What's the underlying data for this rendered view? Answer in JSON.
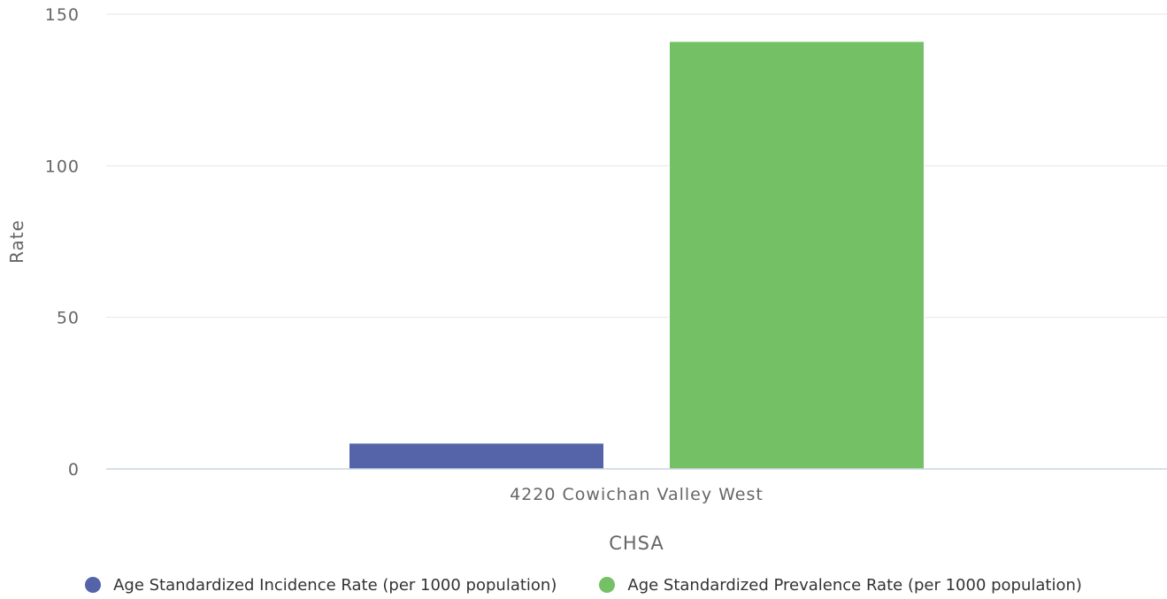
{
  "chart_data": {
    "type": "bar",
    "categories": [
      "4220 Cowichan Valley West"
    ],
    "series": [
      {
        "name": "Age Standardized Incidence Rate (per 1000 population)",
        "values": [
          8.5
        ],
        "color": "#5563a8"
      },
      {
        "name": "Age Standardized Prevalence Rate (per 1000 population)",
        "values": [
          141
        ],
        "color": "#74c165"
      }
    ],
    "title": "",
    "xlabel": "CHSA",
    "ylabel": "Rate",
    "ylim": [
      0,
      150
    ],
    "yticks": [
      0,
      50,
      100,
      150
    ],
    "grid": true,
    "legend_position": "bottom"
  }
}
